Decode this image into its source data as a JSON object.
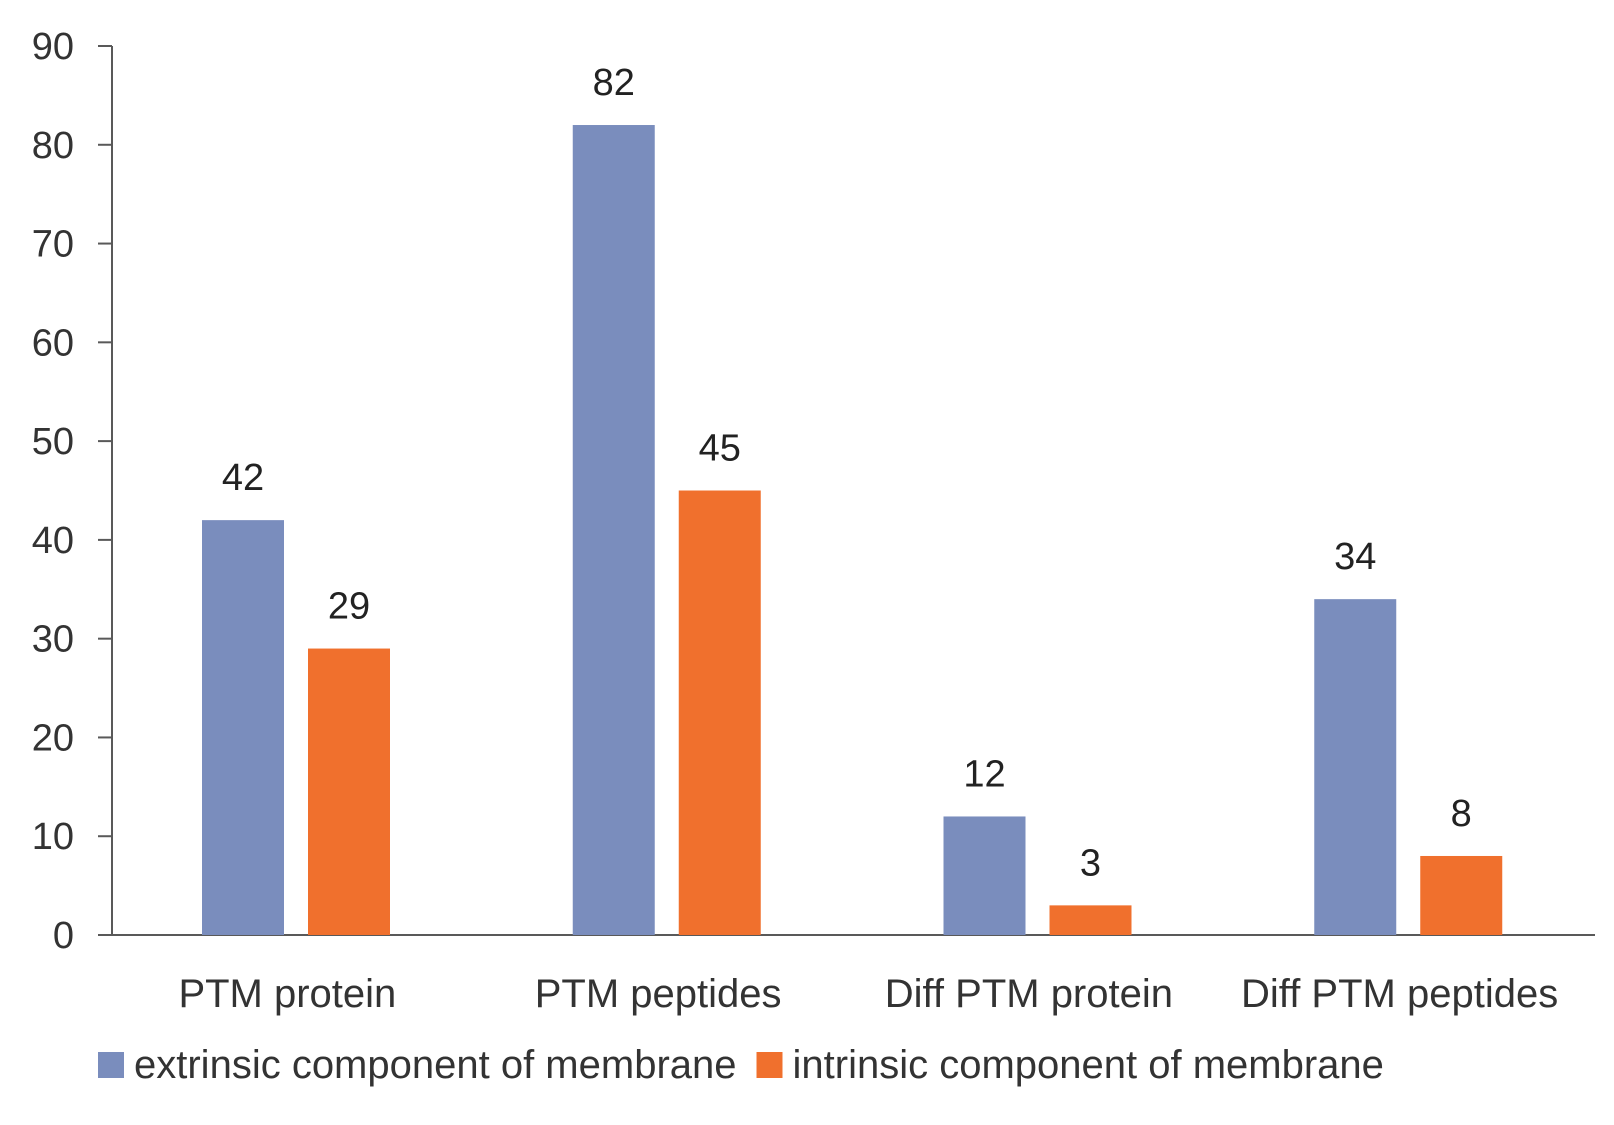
{
  "chart_data": {
    "type": "bar",
    "title": "",
    "xlabel": "",
    "ylabel": "",
    "categories": [
      "PTM protein",
      "PTM peptides",
      "Diff PTM protein",
      "Diff PTM peptides"
    ],
    "series": [
      {
        "name": "extrinsic component of membrane",
        "color": "#7a8dbd",
        "values": [
          42,
          82,
          12,
          34
        ]
      },
      {
        "name": "intrinsic component of membrane",
        "color": "#f0702d",
        "values": [
          29,
          45,
          3,
          8
        ]
      }
    ],
    "ylim": [
      0,
      90
    ],
    "yticks": [
      0,
      10,
      20,
      30,
      40,
      50,
      60,
      70,
      80,
      90
    ],
    "grid": false,
    "legend_position": "bottom",
    "axis_color": "#595959"
  }
}
